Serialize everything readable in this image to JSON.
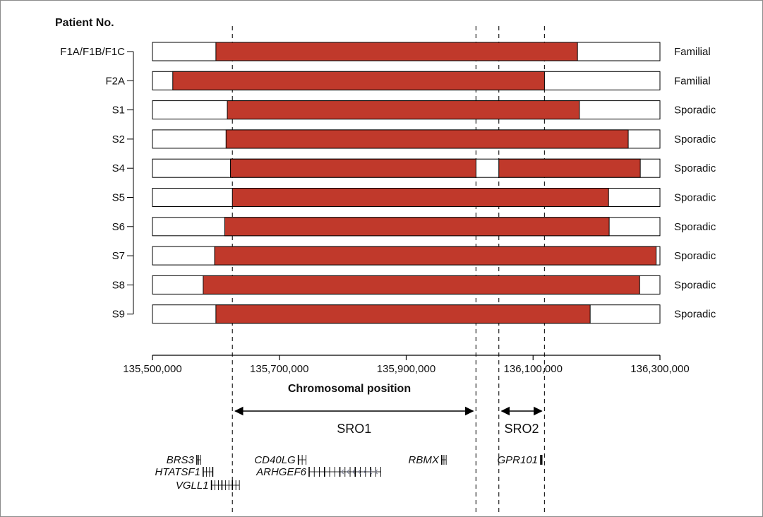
{
  "chart_data": {
    "type": "bar",
    "header": "Patient No.",
    "xlabel": "Chromosomal position",
    "xlim": [
      135500000,
      136300000
    ],
    "x_ticks": [
      135500000,
      135700000,
      135900000,
      136100000,
      136300000
    ],
    "x_tick_labels": [
      "135,500,000",
      "135,700,000",
      "135,900,000",
      "136,100,000",
      "136,300,000"
    ],
    "colors": {
      "dup": "#c0392b",
      "frame": "#000000"
    },
    "rows": [
      {
        "patient": "F1A/F1B/F1C",
        "type": "Familial",
        "segments": [
          [
            135600000,
            136170000
          ]
        ]
      },
      {
        "patient": "F2A",
        "type": "Familial",
        "segments": [
          [
            135532000,
            136118000
          ]
        ]
      },
      {
        "patient": "S1",
        "type": "Sporadic",
        "segments": [
          [
            135618000,
            136173000
          ]
        ]
      },
      {
        "patient": "S2",
        "type": "Sporadic",
        "segments": [
          [
            135616000,
            136250000
          ]
        ]
      },
      {
        "patient": "S4",
        "type": "Sporadic",
        "segments": [
          [
            135623000,
            136010000
          ],
          [
            136046000,
            136269000
          ]
        ]
      },
      {
        "patient": "S5",
        "type": "Sporadic",
        "segments": [
          [
            135626000,
            136219000
          ]
        ]
      },
      {
        "patient": "S6",
        "type": "Sporadic",
        "segments": [
          [
            135614000,
            136220000
          ]
        ]
      },
      {
        "patient": "S7",
        "type": "Sporadic",
        "segments": [
          [
            135598000,
            136294000
          ]
        ]
      },
      {
        "patient": "S8",
        "type": "Sporadic",
        "segments": [
          [
            135580000,
            136268000
          ]
        ]
      },
      {
        "patient": "S9",
        "type": "Sporadic",
        "segments": [
          [
            135600000,
            136190000
          ]
        ]
      }
    ],
    "dashed_lines": [
      135626000,
      136010000,
      136046000,
      136118000
    ],
    "sros": [
      {
        "label": "SRO1",
        "start": 135626000,
        "end": 136010000
      },
      {
        "label": "SRO2",
        "start": 136046000,
        "end": 136118000
      }
    ],
    "genes": [
      {
        "name": "BRS3",
        "start": 135570000,
        "end": 135576000,
        "lane": 0,
        "strand": "+"
      },
      {
        "name": "HTATSF1",
        "start": 135580000,
        "end": 135595000,
        "lane": 1,
        "strand": "+"
      },
      {
        "name": "VGLL1",
        "start": 135593000,
        "end": 135637000,
        "lane": 2,
        "strand": "+"
      },
      {
        "name": "CD40LG",
        "start": 135730000,
        "end": 135742000,
        "lane": 0,
        "strand": "+"
      },
      {
        "name": "ARHGEF6",
        "start": 135747000,
        "end": 135860000,
        "lane": 1,
        "strand": "-"
      },
      {
        "name": "RBMX",
        "start": 135956000,
        "end": 135963000,
        "lane": 0,
        "strand": "-"
      },
      {
        "name": "GPR101",
        "start": 136112000,
        "end": 136113500,
        "lane": 0,
        "strand": "-"
      }
    ]
  }
}
